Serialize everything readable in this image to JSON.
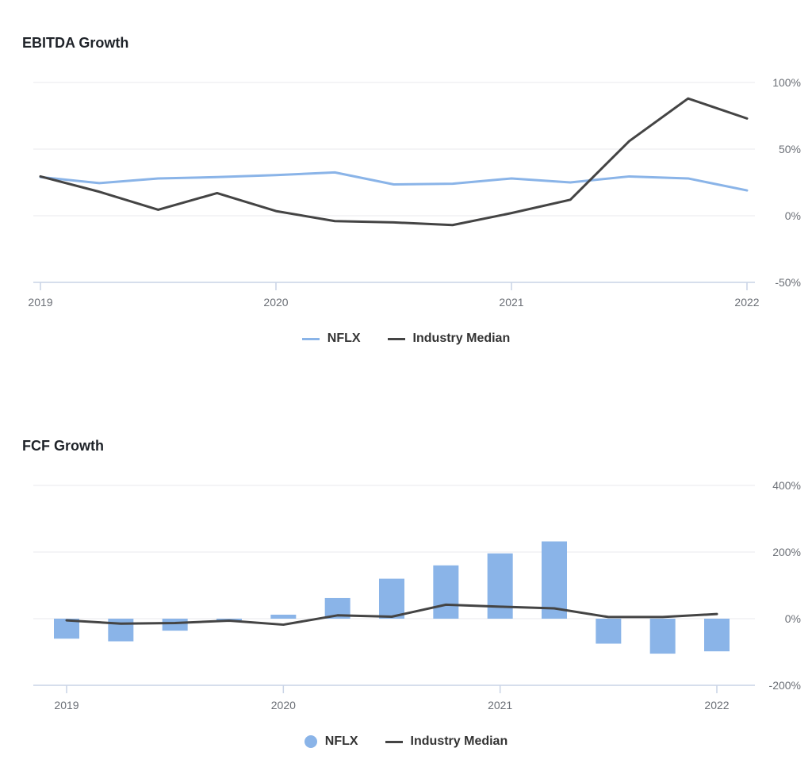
{
  "charts": [
    {
      "title": "EBITDA Growth",
      "legend": [
        {
          "label": "NFLX",
          "color": "#8ab4e8",
          "marker": "line"
        },
        {
          "label": "Industry Median",
          "color": "#444444",
          "marker": "line"
        }
      ]
    },
    {
      "title": "FCF Growth",
      "legend": [
        {
          "label": "NFLX",
          "color": "#8ab4e8",
          "marker": "dot"
        },
        {
          "label": "Industry Median",
          "color": "#444444",
          "marker": "line"
        }
      ]
    }
  ],
  "chart_data": [
    {
      "type": "line",
      "title": "EBITDA Growth",
      "x": [
        2019.0,
        2019.25,
        2019.5,
        2019.75,
        2020.0,
        2020.25,
        2020.5,
        2020.75,
        2021.0,
        2021.25,
        2021.5,
        2021.75,
        2022.0
      ],
      "x_ticks": [
        "2019",
        "2020",
        "2021",
        "2022"
      ],
      "y_ticks": [
        "100%",
        "50%",
        "0%",
        "-50%"
      ],
      "y_tick_values": [
        100,
        50,
        0,
        -50
      ],
      "ylim": [
        -50,
        100
      ],
      "y_unit": "%",
      "grid": true,
      "legend_position": "bottom",
      "series": [
        {
          "name": "NFLX",
          "color": "#8ab4e8",
          "x": [
            2019.0,
            2019.25,
            2019.5,
            2019.75,
            2020.0,
            2020.25,
            2020.5,
            2020.75,
            2021.0,
            2021.25,
            2021.5,
            2021.75,
            2022.0
          ],
          "values": [
            29,
            24.5,
            28,
            29,
            30.5,
            32.5,
            23.5,
            24,
            28,
            25,
            29.5,
            28,
            19
          ]
        },
        {
          "name": "Industry Median",
          "color": "#444444",
          "x": [
            2019.0,
            2019.25,
            2019.5,
            2019.75,
            2020.0,
            2020.25,
            2020.5,
            2020.75,
            2021.0,
            2021.25,
            2021.5,
            2021.75,
            2022.0
          ],
          "values": [
            29.5,
            18,
            4.5,
            17,
            3.5,
            -4,
            -5,
            -7,
            2,
            12,
            56,
            88,
            73
          ]
        }
      ]
    },
    {
      "type": "bar",
      "title": "FCF Growth",
      "x_ticks": [
        "2019",
        "2020",
        "2021",
        "2022"
      ],
      "y_ticks": [
        "400%",
        "200%",
        "0%",
        "-200%"
      ],
      "y_tick_values": [
        400,
        200,
        0,
        -200
      ],
      "ylim": [
        -200,
        400
      ],
      "y_unit": "%",
      "grid": true,
      "legend_position": "bottom",
      "series": [
        {
          "name": "NFLX",
          "type": "bar",
          "color": "#8ab4e8",
          "x": [
            2019.0,
            2019.25,
            2019.5,
            2019.75,
            2020.0,
            2020.25,
            2020.5,
            2020.75,
            2021.0,
            2021.25,
            2021.5,
            2021.75,
            2022.0
          ],
          "values": [
            -60,
            -68,
            -36,
            -5,
            12,
            62,
            120,
            160,
            196,
            232,
            -75,
            -105,
            -98
          ]
        },
        {
          "name": "Industry Median",
          "type": "line",
          "color": "#444444",
          "x": [
            2019.0,
            2019.25,
            2019.5,
            2019.75,
            2020.0,
            2020.25,
            2020.5,
            2020.75,
            2021.0,
            2021.25,
            2021.5,
            2021.75,
            2022.0
          ],
          "values": [
            -5,
            -15,
            -13,
            -6,
            -18,
            10,
            6,
            42,
            36,
            31,
            5,
            5,
            14
          ]
        }
      ]
    }
  ]
}
